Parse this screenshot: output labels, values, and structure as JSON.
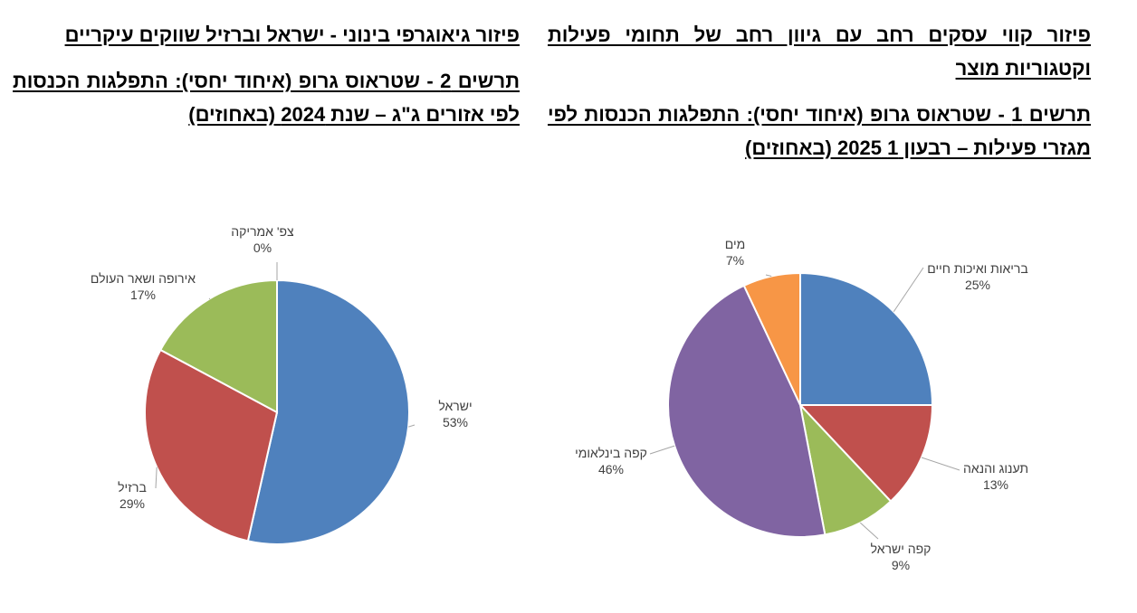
{
  "right_column": {
    "heading": "פיזור קווי עסקים רחב עם גיוון רחב של תחומי פעילות וקטגוריות מוצר",
    "caption": "תרשים 1 - שטראוס גרופ (איחוד יחסי): התפלגות הכנסות לפי מגזרי פעילות – רבעון 1 2025 (באחוזים)"
  },
  "left_column": {
    "heading": "פיזור גיאוגרפי בינוני - ישראל וברזיל שווקים עיקריים",
    "caption": "תרשים 2 - שטראוס גרופ (איחוד יחסי): התפלגות הכנסות לפי אזורים ג\"ג – שנת 2024 (באחוזים)"
  },
  "chart_data": [
    {
      "type": "pie",
      "id": "segments",
      "categories": [
        "בריאות ואיכות חיים",
        "תענוג והנאה",
        "קפה ישראל",
        "קפה בינלאומי",
        "מים"
      ],
      "values": [
        25,
        13,
        9,
        46,
        7
      ],
      "labels": [
        "25%",
        "13%",
        "9%",
        "46%",
        "7%"
      ],
      "colors": [
        "#4F81BD",
        "#C0504D",
        "#9BBB59",
        "#8064A2",
        "#F79646"
      ],
      "start": "12 o'clock",
      "direction": "clockwise",
      "legend": "none"
    },
    {
      "type": "pie",
      "id": "regions",
      "categories": [
        "ישראל",
        "ברזיל",
        "אירופה ושאר העולם",
        "צפ' אמריקה"
      ],
      "values": [
        53,
        29,
        17,
        0
      ],
      "labels": [
        "53%",
        "29%",
        "17%",
        "0%"
      ],
      "colors": [
        "#4F81BD",
        "#C0504D",
        "#9BBB59",
        "#8064A2"
      ],
      "start": "12 o'clock",
      "direction": "clockwise",
      "legend": "none"
    }
  ]
}
